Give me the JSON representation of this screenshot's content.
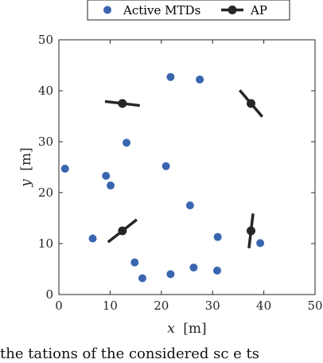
{
  "chart_data": {
    "type": "scatter",
    "title": "",
    "xlabel_var": "x",
    "xlabel_unit": "[m]",
    "ylabel_var": "y",
    "ylabel_unit": "[m]",
    "xlim": [
      0,
      50
    ],
    "ylim": [
      0,
      50
    ],
    "xticks": [
      0,
      10,
      20,
      30,
      40,
      50
    ],
    "yticks": [
      0,
      10,
      20,
      30,
      40,
      50
    ],
    "grid": false,
    "legend": {
      "placement": "top (above plot)",
      "orientation": "horizontal",
      "entries": [
        "Active MTDs",
        "AP"
      ]
    },
    "series": [
      {
        "name": "Active MTDs",
        "marker": "circle",
        "color": "#3A66B0",
        "points": [
          [
            21.8,
            42.7
          ],
          [
            27.5,
            42.2
          ],
          [
            13.2,
            29.8
          ],
          [
            1.2,
            24.7
          ],
          [
            9.2,
            23.3
          ],
          [
            10.1,
            21.4
          ],
          [
            20.9,
            25.2
          ],
          [
            25.6,
            17.5
          ],
          [
            6.6,
            11.0
          ],
          [
            31.0,
            11.3
          ],
          [
            39.3,
            10.1
          ],
          [
            14.8,
            6.3
          ],
          [
            16.3,
            3.2
          ],
          [
            21.8,
            4.0
          ],
          [
            26.3,
            5.3
          ],
          [
            30.9,
            4.7
          ]
        ]
      },
      {
        "name": "AP",
        "marker": "circle-with-line",
        "color": "#262626",
        "points": [
          {
            "x": 12.4,
            "y": 37.5,
            "line_end_a": [
              9.0,
              37.9
            ],
            "line_end_b": [
              15.8,
              37.1
            ]
          },
          {
            "x": 37.5,
            "y": 37.5,
            "line_end_a": [
              35.3,
              40.1
            ],
            "line_end_b": [
              39.7,
              34.9
            ]
          },
          {
            "x": 12.4,
            "y": 12.5,
            "line_end_a": [
              9.6,
              10.3
            ],
            "line_end_b": [
              15.2,
              14.7
            ]
          },
          {
            "x": 37.5,
            "y": 12.5,
            "line_end_a": [
              37.9,
              15.9
            ],
            "line_end_b": [
              37.1,
              9.1
            ]
          }
        ]
      }
    ]
  },
  "caption": {
    "text": "the tations of the considered sc e ts"
  }
}
